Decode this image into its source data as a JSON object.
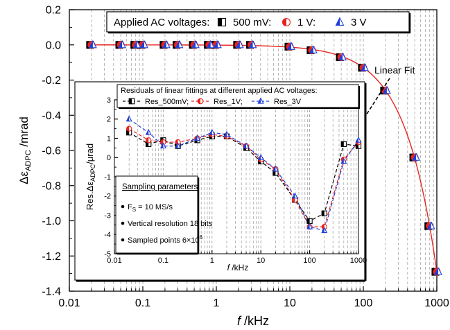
{
  "chart_data": [
    {
      "type": "scatter",
      "xlabel_italic": "f",
      "xlabel_unit": " /kHz",
      "ylabel_main": "Δε",
      "ylabel_sub": "ADPC",
      "ylabel_unit": " /mrad",
      "xscale": "log",
      "xlim": [
        0.01,
        1000
      ],
      "ylim": [
        -1.4,
        0.2
      ],
      "x_ticks": [
        {
          "v": 0.01,
          "label": "0.01"
        },
        {
          "v": 0.1,
          "label": "0.1"
        },
        {
          "v": 1,
          "label": "1"
        },
        {
          "v": 10,
          "label": "10"
        },
        {
          "v": 100,
          "label": "100"
        },
        {
          "v": 1000,
          "label": "1000"
        }
      ],
      "y_ticks": [
        {
          "v": 0.2,
          "label": "0.2"
        },
        {
          "v": 0.0,
          "label": "0.0"
        },
        {
          "v": -0.2,
          "label": "-0.2"
        },
        {
          "v": -0.4,
          "label": "-0.4"
        },
        {
          "v": -0.6,
          "label": "-0.6"
        },
        {
          "v": -0.8,
          "label": "-0.8"
        },
        {
          "v": -1.0,
          "label": "-1.0"
        },
        {
          "v": -1.2,
          "label": "-1.2"
        },
        {
          "v": -1.4,
          "label": "-1.4"
        }
      ],
      "grid": "vertical dashed",
      "legend": {
        "position": "top",
        "title": "Applied AC voltages:",
        "entries": [
          {
            "label": "500 mV:",
            "marker": "square-half",
            "color": "#000000"
          },
          {
            "label": "1 V:",
            "marker": "circle-half",
            "color": "#e8231f"
          },
          {
            "label": "3 V",
            "marker": "triangle-half",
            "color": "#1e3fd8"
          }
        ]
      },
      "x": [
        0.02,
        0.05,
        0.08,
        0.1,
        0.2,
        0.3,
        0.5,
        0.8,
        1,
        2,
        3,
        10,
        20,
        50,
        100,
        200,
        500,
        800,
        1000
      ],
      "series": [
        {
          "name": "500 mV",
          "values": [
            0,
            0,
            0,
            0,
            0,
            0,
            0,
            0,
            0,
            0,
            0,
            -0.01,
            -0.03,
            -0.07,
            -0.13,
            -0.26,
            -0.64,
            -1.03,
            -1.29
          ]
        },
        {
          "name": "1 V",
          "values": [
            0,
            0,
            0,
            0,
            0,
            0,
            0,
            0,
            0,
            0,
            0,
            -0.01,
            -0.03,
            -0.07,
            -0.13,
            -0.26,
            -0.64,
            -1.03,
            -1.29
          ]
        },
        {
          "name": "3 V",
          "values": [
            0,
            0,
            0,
            0,
            0,
            0,
            0,
            0,
            0,
            0,
            0,
            -0.01,
            -0.03,
            -0.07,
            -0.13,
            -0.26,
            -0.64,
            -1.03,
            -1.29
          ]
        }
      ],
      "fit": {
        "slope_mrad_per_khz": -0.00129,
        "color": "#e8231f"
      },
      "annotation": {
        "text": "Linear Fit"
      }
    },
    {
      "type": "line",
      "title": "Residuals of linear fittings at different applied AC voltages:",
      "xlabel_italic": "f",
      "xlabel_unit": " /kHz",
      "ylabel_pre": "Res.Δε",
      "ylabel_sub": "ADPC",
      "ylabel_unit": "/μrad",
      "xscale": "log",
      "xlim": [
        0.01,
        1000
      ],
      "ylim": [
        -5,
        3
      ],
      "x_ticks": [
        {
          "v": 0.01,
          "label": "0.01"
        },
        {
          "v": 0.1,
          "label": "0.1"
        },
        {
          "v": 1,
          "label": "1"
        },
        {
          "v": 10,
          "label": "10"
        },
        {
          "v": 100,
          "label": "100"
        },
        {
          "v": 1000,
          "label": "1000"
        }
      ],
      "y_ticks": [
        {
          "v": 3,
          "label": "3"
        },
        {
          "v": 2,
          "label": "2"
        },
        {
          "v": 1,
          "label": "1"
        },
        {
          "v": 0,
          "label": "0"
        },
        {
          "v": -1,
          "label": "-1"
        },
        {
          "v": -2,
          "label": "-2"
        },
        {
          "v": -3,
          "label": "-3"
        },
        {
          "v": -4,
          "label": "-4"
        },
        {
          "v": -5,
          "label": "-5"
        }
      ],
      "legend": {
        "position": "top",
        "entries": [
          {
            "label": "Res_500mV;",
            "marker": "square-half",
            "color": "#000000"
          },
          {
            "label": "Res_1V;",
            "marker": "circle-half",
            "color": "#e8231f"
          },
          {
            "label": "Res_3V",
            "marker": "triangle-half",
            "color": "#1e3fd8"
          }
        ]
      },
      "x": [
        0.02,
        0.05,
        0.1,
        0.2,
        0.5,
        1,
        2,
        5,
        10,
        20,
        50,
        100,
        200,
        500,
        1000
      ],
      "series": [
        {
          "name": "Res_500mV",
          "values": [
            1.3,
            0.7,
            0.9,
            0.6,
            0.9,
            1.1,
            1.1,
            0.5,
            -0.2,
            -0.8,
            -2.2,
            -3.3,
            -2.9,
            0.7,
            0.6
          ]
        },
        {
          "name": "Res_1V",
          "values": [
            1.5,
            0.9,
            0.8,
            0.8,
            1.0,
            1.2,
            1.1,
            0.6,
            -0.1,
            -0.6,
            -2.2,
            -3.6,
            -3.6,
            -0.1,
            0.8
          ]
        },
        {
          "name": "Res_3V",
          "values": [
            2.0,
            1.3,
            0.6,
            0.6,
            1.0,
            1.3,
            1.2,
            0.6,
            0.0,
            -0.6,
            -2.0,
            -3.6,
            -3.8,
            -0.2,
            0.9
          ]
        }
      ],
      "params_box": {
        "title": "Sampling parameters",
        "items": [
          {
            "main": "F",
            "sub": "S",
            "rest": " = 10 MS/s"
          },
          {
            "main": "Vertical resolution 18 bits",
            "sub": "",
            "rest": ""
          },
          {
            "main": "Sampled points 6×10",
            "sup": "6",
            "rest": ""
          }
        ]
      }
    }
  ]
}
